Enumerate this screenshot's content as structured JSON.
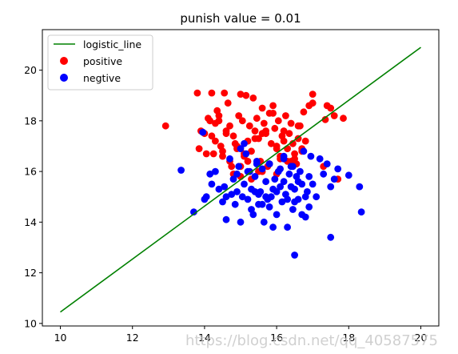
{
  "chart_data": {
    "type": "scatter",
    "title": "punish value = 0.01",
    "xlabel": "",
    "ylabel": "",
    "xlim": [
      9.5,
      20.5
    ],
    "ylim": [
      9.9,
      21.6
    ],
    "xticks": [
      10,
      12,
      14,
      16,
      18,
      20
    ],
    "yticks": [
      10,
      12,
      14,
      16,
      18,
      20
    ],
    "grid": false,
    "legend_position": "top-left",
    "line": {
      "name": "logistic_line",
      "color": "#008000",
      "x": [
        10,
        20
      ],
      "y": [
        10.45,
        20.9
      ]
    },
    "series": [
      {
        "name": "positive",
        "color": "#ff0000",
        "x": [
          12.92,
          13.8,
          13.85,
          13.9,
          14.0,
          14.05,
          14.15,
          14.2,
          14.25,
          14.3,
          14.35,
          14.4,
          14.45,
          14.5,
          14.55,
          14.6,
          14.65,
          14.7,
          14.75,
          14.8,
          14.85,
          14.9,
          14.95,
          15.0,
          15.05,
          15.1,
          15.15,
          15.2,
          15.25,
          15.3,
          15.35,
          15.4,
          15.45,
          15.5,
          15.55,
          15.6,
          15.65,
          15.7,
          15.75,
          15.8,
          15.85,
          15.9,
          15.95,
          16.0,
          16.05,
          16.1,
          16.15,
          16.2,
          16.25,
          16.3,
          16.35,
          16.4,
          16.45,
          16.5,
          16.55,
          16.6,
          16.65,
          16.7,
          16.75,
          16.8,
          16.9,
          17.0,
          17.3,
          17.4,
          17.5,
          17.7,
          17.85,
          14.3,
          14.6,
          14.9,
          15.2,
          15.5,
          15.8,
          16.1,
          16.4,
          16.7,
          14.1,
          14.4,
          14.7,
          15.0,
          15.3,
          15.6,
          15.9,
          16.2,
          16.5,
          14.2,
          14.5,
          14.8,
          15.1,
          15.4,
          15.7,
          16.0,
          16.3,
          16.6,
          15.0,
          15.6,
          16.0,
          17.0,
          17.6,
          17.35
        ],
        "y": [
          17.8,
          19.1,
          16.9,
          17.6,
          17.5,
          16.7,
          18.0,
          19.1,
          16.7,
          17.2,
          18.4,
          18.2,
          17.0,
          16.6,
          19.1,
          17.6,
          18.7,
          16.4,
          16.2,
          17.4,
          17.1,
          16.9,
          18.2,
          19.05,
          18.0,
          16.6,
          19.0,
          17.2,
          17.8,
          16.8,
          18.9,
          17.6,
          18.1,
          17.3,
          16.4,
          18.5,
          17.9,
          17.5,
          16.2,
          18.3,
          17.1,
          18.6,
          17.7,
          17.0,
          18.0,
          16.6,
          17.4,
          17.2,
          18.2,
          16.9,
          17.5,
          17.9,
          17.1,
          16.7,
          16.3,
          17.3,
          17.8,
          16.9,
          18.35,
          17.2,
          18.6,
          19.05,
          16.2,
          18.6,
          18.5,
          15.7,
          18.1,
          17.9,
          17.5,
          17.0,
          16.4,
          16.0,
          16.3,
          16.5,
          16.4,
          16.8,
          18.1,
          18.0,
          17.8,
          16.2,
          15.7,
          17.5,
          18.3,
          17.6,
          16.5,
          17.4,
          16.8,
          15.9,
          16.7,
          17.3,
          17.6,
          16.9,
          16.4,
          17.8,
          15.8,
          16.0,
          15.9,
          18.7,
          18.2,
          18.05
        ]
      },
      {
        "name": "negtive",
        "color": "#0000ff",
        "x": [
          13.35,
          13.7,
          13.95,
          14.05,
          14.15,
          14.3,
          14.4,
          14.5,
          14.55,
          14.6,
          14.7,
          14.75,
          14.8,
          14.85,
          14.9,
          14.95,
          15.0,
          15.05,
          15.1,
          15.15,
          15.2,
          15.25,
          15.3,
          15.35,
          15.4,
          15.45,
          15.5,
          15.55,
          15.6,
          15.65,
          15.7,
          15.75,
          15.8,
          15.85,
          15.9,
          15.95,
          16.0,
          16.05,
          16.1,
          16.15,
          16.2,
          16.25,
          16.3,
          16.35,
          16.4,
          16.45,
          16.5,
          16.55,
          16.6,
          16.65,
          16.7,
          16.75,
          16.8,
          16.85,
          16.9,
          16.95,
          17.0,
          17.1,
          17.2,
          17.3,
          17.4,
          17.5,
          17.6,
          17.7,
          18.0,
          18.3,
          18.35,
          14.2,
          14.6,
          15.0,
          15.4,
          15.8,
          16.2,
          16.6,
          14.9,
          15.3,
          15.7,
          16.1,
          16.5,
          16.9,
          15.1,
          15.5,
          15.9,
          16.3,
          16.7,
          15.2,
          15.6,
          16.0,
          16.4,
          16.8,
          15.8,
          16.2,
          16.45,
          17.5,
          16.5,
          14.0,
          15.45
        ],
        "y": [
          16.05,
          14.4,
          17.55,
          15.0,
          15.9,
          16.0,
          15.3,
          14.8,
          15.4,
          14.1,
          16.5,
          15.1,
          15.7,
          14.7,
          15.2,
          16.2,
          14.0,
          15.0,
          15.5,
          16.7,
          14.9,
          16.0,
          15.3,
          14.3,
          15.8,
          16.4,
          14.7,
          15.2,
          16.1,
          14.0,
          15.6,
          14.9,
          16.3,
          15.0,
          13.8,
          15.7,
          14.3,
          16.0,
          15.4,
          14.8,
          16.5,
          15.1,
          13.8,
          15.9,
          16.2,
          14.5,
          15.3,
          15.8,
          14.9,
          16.0,
          15.5,
          16.8,
          14.2,
          15.2,
          15.8,
          16.6,
          15.5,
          15.0,
          16.5,
          15.9,
          16.3,
          13.4,
          15.7,
          16.1,
          15.85,
          15.4,
          14.4,
          15.5,
          15.0,
          16.9,
          15.2,
          14.6,
          15.6,
          15.6,
          15.9,
          14.5,
          15.0,
          16.1,
          12.7,
          14.6,
          17.1,
          15.1,
          15.3,
          14.9,
          14.3,
          16.0,
          14.7,
          15.2,
          15.4,
          15.0,
          16.3,
          16.6,
          16.2,
          15.4,
          14.8,
          14.9,
          16.3
        ]
      }
    ]
  },
  "watermark": "https://blog.csdn.net/qq_40587575"
}
